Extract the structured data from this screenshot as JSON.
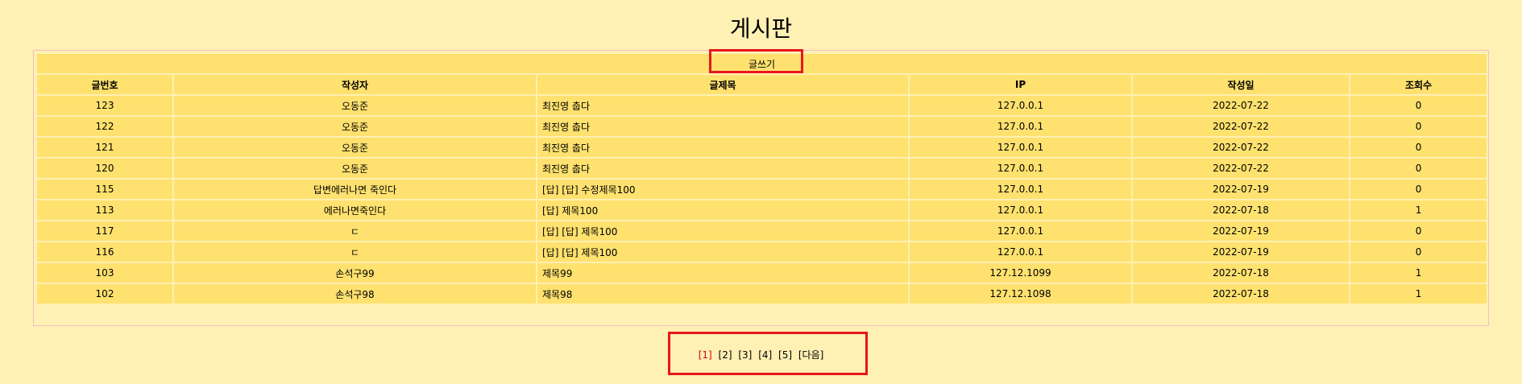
{
  "page": {
    "title": "게시판"
  },
  "toolbar": {
    "write_label": "글쓰기"
  },
  "table": {
    "headers": [
      "글번호",
      "작성자",
      "글제목",
      "IP",
      "작성일",
      "조회수"
    ],
    "rows": [
      [
        "123",
        "오동준",
        "최진영 춥다",
        "127.0.0.1",
        "2022-07-22",
        "0"
      ],
      [
        "122",
        "오동준",
        "최진영 춥다",
        "127.0.0.1",
        "2022-07-22",
        "0"
      ],
      [
        "121",
        "오동준",
        "최진영 춥다",
        "127.0.0.1",
        "2022-07-22",
        "0"
      ],
      [
        "120",
        "오동준",
        "최진영 춥다",
        "127.0.0.1",
        "2022-07-22",
        "0"
      ],
      [
        "115",
        "답변에러나면 죽인다",
        "[답] [답] 수정제목100",
        "127.0.0.1",
        "2022-07-19",
        "0"
      ],
      [
        "113",
        "에러나면죽인다",
        "[답] 제목100",
        "127.0.0.1",
        "2022-07-18",
        "1"
      ],
      [
        "117",
        "ㄷ",
        "[답] [답] 제목100",
        "127.0.0.1",
        "2022-07-19",
        "0"
      ],
      [
        "116",
        "ㄷ",
        "[답] [답] 제목100",
        "127.0.0.1",
        "2022-07-19",
        "0"
      ],
      [
        "103",
        "손석구99",
        "제목99",
        "127.12.1099",
        "2022-07-18",
        "1"
      ],
      [
        "102",
        "손석구98",
        "제목98",
        "127.12.1098",
        "2022-07-18",
        "1"
      ]
    ]
  },
  "pagination": {
    "pages": [
      "[1]",
      "[2]",
      "[3]",
      "[4]",
      "[5]"
    ],
    "next_label": "[다음]",
    "current_index": 0
  },
  "colors": {
    "background": "#FFF0B3",
    "cell": "#FFE16F",
    "highlight": "#E8161D",
    "current_page": "#D4001A"
  }
}
